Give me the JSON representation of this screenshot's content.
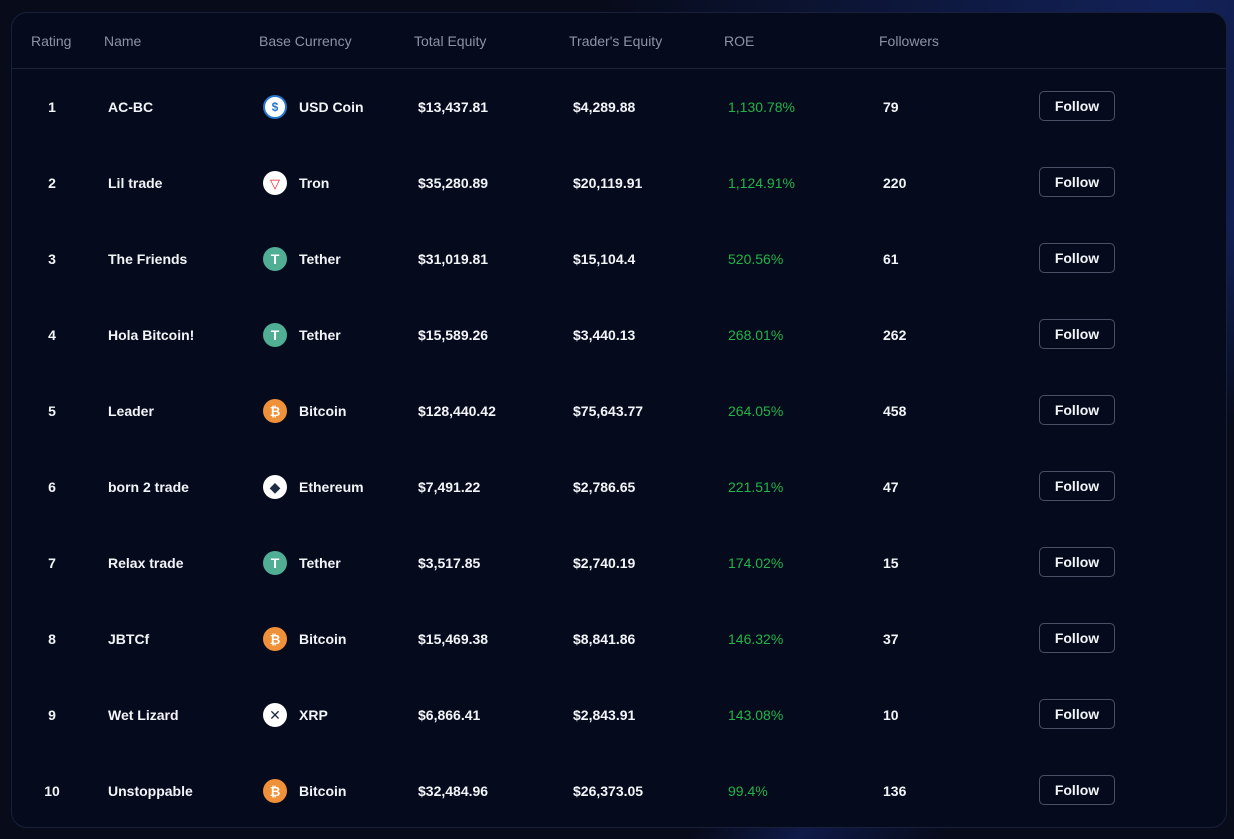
{
  "columns": {
    "rating": "Rating",
    "name": "Name",
    "base_currency": "Base Currency",
    "total_equity": "Total Equity",
    "traders_equity": "Trader's Equity",
    "roe": "ROE",
    "followers": "Followers"
  },
  "follow_label": "Follow",
  "colors": {
    "roe_positive": "#22b44a",
    "background": "#050b1c"
  },
  "rows": [
    {
      "rating": "1",
      "name": "AC-BC",
      "currency": "USD Coin",
      "icon": "usd-coin-icon",
      "total_equity": "$13,437.81",
      "traders_equity": "$4,289.88",
      "roe": "1,130.78%",
      "followers": "79"
    },
    {
      "rating": "2",
      "name": "Lil trade",
      "currency": "Tron",
      "icon": "tron-icon",
      "total_equity": "$35,280.89",
      "traders_equity": "$20,119.91",
      "roe": "1,124.91%",
      "followers": "220"
    },
    {
      "rating": "3",
      "name": "The Friends",
      "currency": "Tether",
      "icon": "tether-icon",
      "total_equity": "$31,019.81",
      "traders_equity": "$15,104.4",
      "roe": "520.56%",
      "followers": "61"
    },
    {
      "rating": "4",
      "name": "Hola Bitcoin!",
      "currency": "Tether",
      "icon": "tether-icon",
      "total_equity": "$15,589.26",
      "traders_equity": "$3,440.13",
      "roe": "268.01%",
      "followers": "262"
    },
    {
      "rating": "5",
      "name": "Leader",
      "currency": "Bitcoin",
      "icon": "bitcoin-icon",
      "total_equity": "$128,440.42",
      "traders_equity": "$75,643.77",
      "roe": "264.05%",
      "followers": "458"
    },
    {
      "rating": "6",
      "name": "born 2 trade",
      "currency": "Ethereum",
      "icon": "ethereum-icon",
      "total_equity": "$7,491.22",
      "traders_equity": "$2,786.65",
      "roe": "221.51%",
      "followers": "47"
    },
    {
      "rating": "7",
      "name": "Relax trade",
      "currency": "Tether",
      "icon": "tether-icon",
      "total_equity": "$3,517.85",
      "traders_equity": "$2,740.19",
      "roe": "174.02%",
      "followers": "15"
    },
    {
      "rating": "8",
      "name": "JBTCf",
      "currency": "Bitcoin",
      "icon": "bitcoin-icon",
      "total_equity": "$15,469.38",
      "traders_equity": "$8,841.86",
      "roe": "146.32%",
      "followers": "37"
    },
    {
      "rating": "9",
      "name": "Wet Lizard",
      "currency": "XRP",
      "icon": "xrp-icon",
      "total_equity": "$6,866.41",
      "traders_equity": "$2,843.91",
      "roe": "143.08%",
      "followers": "10"
    },
    {
      "rating": "10",
      "name": "Unstoppable",
      "currency": "Bitcoin",
      "icon": "bitcoin-icon",
      "total_equity": "$32,484.96",
      "traders_equity": "$26,373.05",
      "roe": "99.4%",
      "followers": "136"
    }
  ]
}
